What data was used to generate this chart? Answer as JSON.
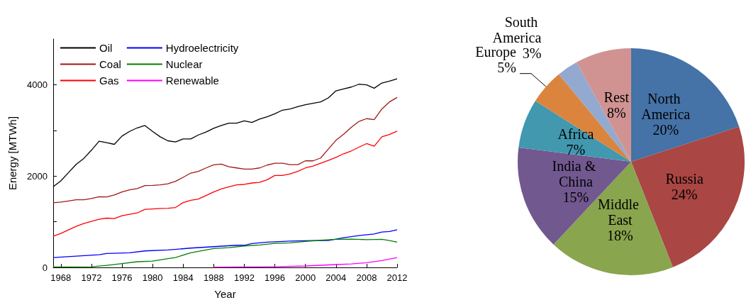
{
  "chart_data": [
    {
      "type": "line",
      "xlabel": "Year",
      "ylabel": "Energy [MTWh]",
      "xlim": [
        1967,
        2012
      ],
      "xticks": [
        1968,
        1972,
        1976,
        1980,
        1984,
        1988,
        1992,
        1996,
        2000,
        2004,
        2008,
        2012
      ],
      "ylim": [
        0,
        5000
      ],
      "yticks": [
        0,
        {
          "value": 1000,
          "label": null
        },
        2000,
        {
          "value": 3000,
          "label": null
        },
        4000
      ],
      "grid": false,
      "legend": "top left",
      "marker": "none",
      "line_style": "solid",
      "series": [
        {
          "name": "Oil",
          "color": "#000000",
          "x": [
            1967,
            1968,
            1969,
            1970,
            1971,
            1972,
            1973,
            1974,
            1975,
            1976,
            1977,
            1978,
            1979,
            1980,
            1981,
            1982,
            1983,
            1984,
            1985,
            1986,
            1987,
            1988,
            1989,
            1990,
            1991,
            1992,
            1993,
            1994,
            1995,
            1996,
            1997,
            1998,
            1999,
            2000,
            2001,
            2002,
            2003,
            2004,
            2005,
            2006,
            2007,
            2008,
            2009,
            2010,
            2011,
            2012
          ],
          "values": [
            1765,
            1894,
            2075,
            2255,
            2385,
            2565,
            2761,
            2730,
            2694,
            2875,
            2978,
            3055,
            3107,
            2978,
            2859,
            2772,
            2746,
            2813,
            2813,
            2900,
            2963,
            3045,
            3107,
            3159,
            3159,
            3210,
            3174,
            3246,
            3298,
            3365,
            3443,
            3468,
            3520,
            3561,
            3592,
            3623,
            3711,
            3866,
            3907,
            3948,
            4010,
            3995,
            3923,
            4036,
            4077,
            4129
          ]
        },
        {
          "name": "Coal",
          "color": "#a01818",
          "x": [
            1967,
            1968,
            1969,
            1970,
            1971,
            1972,
            1973,
            1974,
            1975,
            1976,
            1977,
            1978,
            1979,
            1980,
            1981,
            1982,
            1983,
            1984,
            1985,
            1986,
            1987,
            1988,
            1989,
            1990,
            1991,
            1992,
            1993,
            1994,
            1995,
            1996,
            1997,
            1998,
            1999,
            2000,
            2001,
            2002,
            2003,
            2004,
            2005,
            2006,
            2007,
            2008,
            2009,
            2010,
            2011,
            2012
          ],
          "values": [
            1414,
            1430,
            1455,
            1481,
            1481,
            1507,
            1548,
            1543,
            1585,
            1652,
            1698,
            1724,
            1791,
            1796,
            1806,
            1832,
            1884,
            1972,
            2065,
            2101,
            2178,
            2245,
            2261,
            2204,
            2178,
            2152,
            2152,
            2178,
            2240,
            2281,
            2281,
            2250,
            2250,
            2333,
            2333,
            2395,
            2591,
            2782,
            2916,
            3066,
            3195,
            3257,
            3236,
            3468,
            3623,
            3721
          ]
        },
        {
          "name": "Gas",
          "color": "#ff0000",
          "x": [
            1967,
            1968,
            1969,
            1970,
            1971,
            1972,
            1973,
            1974,
            1975,
            1976,
            1977,
            1978,
            1979,
            1980,
            1981,
            1982,
            1983,
            1984,
            1985,
            1986,
            1987,
            1988,
            1989,
            1990,
            1991,
            1992,
            1993,
            1994,
            1995,
            1996,
            1997,
            1998,
            1999,
            2000,
            2001,
            2002,
            2003,
            2004,
            2005,
            2006,
            2007,
            2008,
            2009,
            2010,
            2011,
            2012
          ],
          "values": [
            681,
            743,
            821,
            898,
            960,
            1006,
            1053,
            1079,
            1068,
            1130,
            1161,
            1192,
            1270,
            1280,
            1290,
            1295,
            1311,
            1419,
            1471,
            1497,
            1574,
            1652,
            1719,
            1765,
            1806,
            1817,
            1848,
            1863,
            1920,
            2013,
            2013,
            2049,
            2101,
            2178,
            2219,
            2281,
            2343,
            2410,
            2488,
            2550,
            2632,
            2710,
            2653,
            2859,
            2911,
            2983
          ]
        },
        {
          "name": "Hydroelectricity",
          "color": "#0000ff",
          "x": [
            1967,
            1970,
            1973,
            1974,
            1977,
            1979,
            1982,
            1985,
            1988,
            1991,
            1992,
            1993,
            1995,
            1998,
            2001,
            2003,
            2005,
            2007,
            2009,
            2010,
            2011,
            2012
          ],
          "values": [
            217,
            248,
            279,
            305,
            320,
            361,
            382,
            423,
            454,
            485,
            485,
            521,
            552,
            578,
            588,
            588,
            650,
            697,
            733,
            774,
            785,
            826
          ]
        },
        {
          "name": "Nuclear",
          "color": "#008000",
          "x": [
            1967,
            1972,
            1974,
            1976,
            1978,
            1980,
            1982,
            1983,
            1985,
            1987,
            1988,
            1990,
            1992,
            1994,
            1996,
            1998,
            2000,
            2002,
            2004,
            2006,
            2008,
            2010,
            2011,
            2012
          ],
          "values": [
            10,
            15,
            46,
            83,
            124,
            139,
            191,
            217,
            320,
            382,
            413,
            434,
            470,
            490,
            526,
            537,
            568,
            594,
            614,
            619,
            609,
            614,
            588,
            552
          ]
        },
        {
          "name": "Renewable",
          "color": "#ff00ff",
          "x": [
            1988,
            1992,
            1996,
            2000,
            2004,
            2006,
            2008,
            2010,
            2012
          ],
          "values": [
            5,
            10,
            15,
            31,
            62,
            77,
            103,
            150,
            217
          ]
        }
      ]
    },
    {
      "type": "pie",
      "categories": [
        "North America",
        "Russia",
        "Middle East",
        "India & China",
        "Africa",
        "Europe",
        "South America",
        "Rest"
      ],
      "values": [
        20,
        24,
        18,
        15,
        7,
        5,
        3,
        8
      ],
      "value_labels": [
        "20%",
        "24%",
        "18%",
        "15%",
        "7%",
        "5%",
        "3%",
        "8%"
      ],
      "colors": [
        "#4572a7",
        "#aa4643",
        "#89a54e",
        "#71588f",
        "#4198af",
        "#db843d",
        "#93a9cf",
        "#d19392"
      ]
    }
  ]
}
